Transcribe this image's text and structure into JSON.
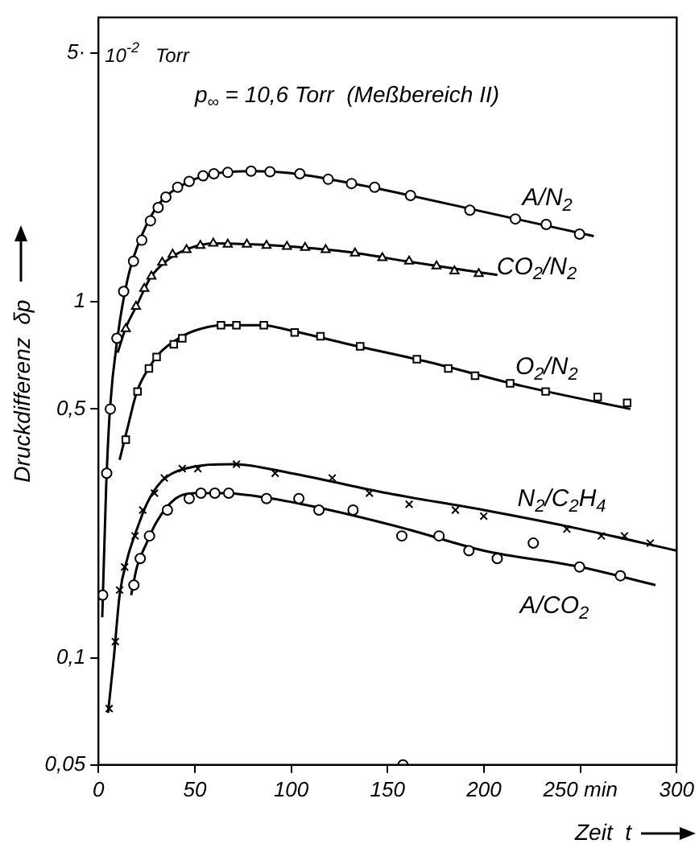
{
  "chart_data": {
    "type": "scatter",
    "xlabel": "Zeit  t",
    "ylabel": "Druckdifferenz  δp",
    "log": "y",
    "grid": false,
    "legend": false,
    "xlim": [
      0,
      300
    ],
    "xticks": [
      0,
      50,
      100,
      150,
      200,
      {
        "value": 250,
        "label": "250 min"
      },
      300
    ],
    "ylim": [
      0.05,
      6.3
    ],
    "yticks": [
      {
        "value": 0.05,
        "label": "0,05"
      },
      {
        "value": 0.1,
        "label": "0,1"
      },
      {
        "value": 0.5,
        "label": "0,5"
      },
      1,
      {
        "value": 5,
        "label": "5·"
      }
    ],
    "annotations": [
      "10$^{-2}$   Torr",
      "p$_{∞}$ = 10,6 Torr  (Meßbereich II)"
    ],
    "series": [
      {
        "name": "A/N$_{2}$",
        "marker": "circle",
        "color": "#000000",
        "x": [
          2.2,
          4.3,
          6.2,
          9.6,
          13.1,
          18.2,
          22.5,
          27,
          31,
          35,
          41.1,
          47.1,
          54.3,
          59.9,
          67.1,
          79.2,
          89,
          104.5,
          119.2,
          131.3,
          143.3,
          161.9,
          192.7,
          216.3,
          232.3,
          249.6
        ],
        "values": [
          0.15,
          0.33,
          0.5,
          0.79,
          1.07,
          1.3,
          1.49,
          1.69,
          1.84,
          1.97,
          2.1,
          2.18,
          2.26,
          2.29,
          2.31,
          2.33,
          2.32,
          2.29,
          2.21,
          2.15,
          2.1,
          1.99,
          1.81,
          1.71,
          1.65,
          1.55
        ]
      },
      {
        "name": "CO$_{2}$/N$_{2}$",
        "marker": "triangle",
        "color": "#000000",
        "x": [
          14.2,
          19.5,
          23.8,
          27.5,
          33.1,
          38.5,
          45.7,
          52.9,
          59.6,
          67.1,
          77,
          87.2,
          97.8,
          107.2,
          117.9,
          133.1,
          147.3,
          161.2,
          175.4,
          184.7,
          197.3
        ],
        "values": [
          0.84,
          0.97,
          1.09,
          1.18,
          1.29,
          1.36,
          1.4,
          1.44,
          1.46,
          1.45,
          1.45,
          1.44,
          1.43,
          1.42,
          1.4,
          1.37,
          1.33,
          1.3,
          1.26,
          1.22,
          1.2
        ]
      },
      {
        "name": "O$_{2}$/N$_{2}$",
        "marker": "square",
        "color": "#000000",
        "x": [
          14.2,
          20.3,
          26.2,
          30.2,
          39.1,
          43.5,
          63.6,
          71.6,
          85.8,
          101.8,
          115.2,
          135.8,
          165.2,
          181.5,
          195.4,
          213.6,
          232,
          259,
          274.3
        ],
        "values": [
          0.41,
          0.56,
          0.65,
          0.7,
          0.76,
          0.79,
          0.86,
          0.86,
          0.86,
          0.82,
          0.8,
          0.75,
          0.69,
          0.65,
          0.62,
          0.59,
          0.56,
          0.54,
          0.52
        ]
      },
      {
        "name": "N$_{2}$/C$_{2}$H$_{4}$",
        "marker": "cross",
        "color": "#000000",
        "x": [
          5.6,
          8.8,
          11,
          13.6,
          19,
          23,
          29.1,
          34.2,
          43.5,
          51.6,
          71.6,
          91.7,
          121.3,
          140.6,
          161.2,
          185.2,
          199.9,
          243,
          260.9,
          272.9,
          286.3
        ],
        "values": [
          0.072,
          0.111,
          0.155,
          0.18,
          0.22,
          0.26,
          0.29,
          0.32,
          0.34,
          0.34,
          0.35,
          0.33,
          0.32,
          0.29,
          0.27,
          0.26,
          0.25,
          0.23,
          0.22,
          0.22,
          0.21
        ]
      },
      {
        "name": "A/CO$_{2}$",
        "marker": "circle",
        "color": "#000000",
        "x": [
          18.4,
          21.7,
          26.5,
          35.8,
          47.1,
          53.2,
          60.4,
          67.6,
          87.2,
          104,
          114.4,
          132.1,
          157.4,
          158,
          176.7,
          192.2,
          206.9,
          225.6,
          249.6,
          270.8
        ],
        "values": [
          0.16,
          0.19,
          0.22,
          0.26,
          0.28,
          0.29,
          0.29,
          0.29,
          0.28,
          0.28,
          0.26,
          0.26,
          0.22,
          0.05,
          0.22,
          0.2,
          0.19,
          0.21,
          0.18,
          0.17
        ]
      },
      {
        "type": "line",
        "marker": "none",
        "color": "#000000",
        "x": [
          2,
          4,
          6,
          10,
          15,
          20,
          30,
          45,
          60,
          80,
          100,
          130,
          160,
          200,
          257
        ],
        "values": [
          0.13,
          0.3,
          0.5,
          0.8,
          1.15,
          1.42,
          1.84,
          2.15,
          2.29,
          2.33,
          2.3,
          2.16,
          2.0,
          1.79,
          1.53
        ]
      },
      {
        "type": "line",
        "marker": "none",
        "color": "#000000",
        "x": [
          10,
          14,
          20,
          27,
          35,
          45,
          60,
          80,
          100,
          130,
          160,
          207
        ],
        "values": [
          0.72,
          0.84,
          0.98,
          1.17,
          1.3,
          1.4,
          1.46,
          1.45,
          1.43,
          1.38,
          1.3,
          1.19
        ]
      },
      {
        "type": "line",
        "marker": "none",
        "color": "#000000",
        "x": [
          11,
          15,
          20,
          26,
          32,
          40,
          50,
          65,
          85,
          100,
          130,
          170,
          220,
          276
        ],
        "values": [
          0.36,
          0.44,
          0.56,
          0.65,
          0.72,
          0.78,
          0.83,
          0.86,
          0.86,
          0.83,
          0.76,
          0.68,
          0.58,
          0.5
        ]
      },
      {
        "type": "line",
        "marker": "none",
        "color": "#000000",
        "x": [
          5,
          8,
          11,
          15,
          20,
          25,
          32,
          45,
          70,
          100,
          150,
          200,
          250,
          300
        ],
        "values": [
          0.07,
          0.1,
          0.15,
          0.19,
          0.23,
          0.27,
          0.31,
          0.34,
          0.35,
          0.33,
          0.29,
          0.26,
          0.23,
          0.2
        ]
      },
      {
        "type": "line",
        "marker": "none",
        "color": "#000000",
        "x": [
          17,
          20,
          25,
          30,
          40,
          50,
          65,
          90,
          120,
          160,
          200,
          250,
          289
        ],
        "values": [
          0.15,
          0.18,
          0.21,
          0.24,
          0.28,
          0.29,
          0.29,
          0.28,
          0.26,
          0.23,
          0.2,
          0.18,
          0.16
        ]
      }
    ]
  }
}
